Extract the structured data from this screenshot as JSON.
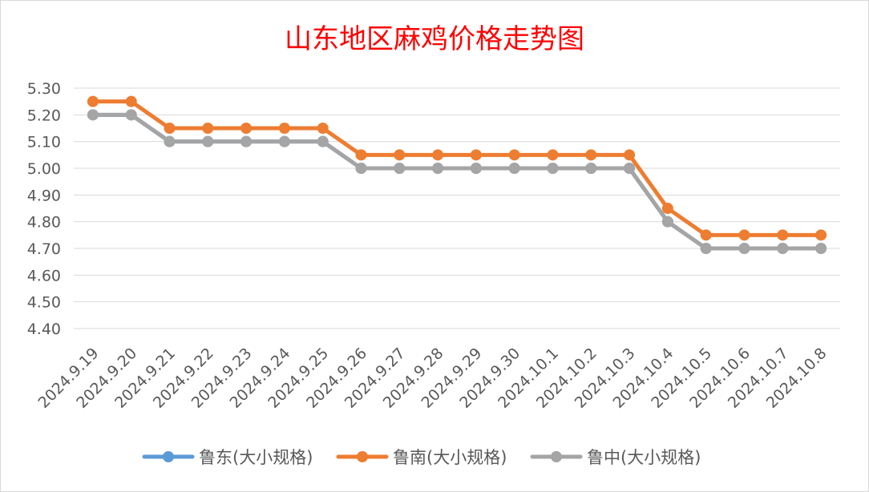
{
  "chart_data": {
    "type": "line",
    "title": "山东地区麻鸡价格走势图",
    "xlabel": "",
    "ylabel": "",
    "ylim": [
      4.4,
      5.3
    ],
    "yticks": [
      "5.30",
      "5.20",
      "5.10",
      "5.00",
      "4.90",
      "4.80",
      "4.70",
      "4.60",
      "4.50",
      "4.40"
    ],
    "grid": true,
    "legend_position": "bottom",
    "categories": [
      "2024.9.19",
      "2024.9.20",
      "2024.9.21",
      "2024.9.22",
      "2024.9.23",
      "2024.9.24",
      "2024.9.25",
      "2024.9.26",
      "2024.9.27",
      "2024.9.28",
      "2024.9.29",
      "2024.9.30",
      "2024.10.1",
      "2024.10.2",
      "2024.10.3",
      "2024.10.4",
      "2024.10.5",
      "2024.10.6",
      "2024.10.7",
      "2024.10.8"
    ],
    "series": [
      {
        "name": "鲁东(大小规格)",
        "color": "#5b9bd5",
        "values": [
          5.2,
          5.2,
          5.1,
          5.1,
          5.1,
          5.1,
          5.1,
          5.0,
          5.0,
          5.0,
          5.0,
          5.0,
          5.0,
          5.0,
          5.0,
          4.8,
          4.7,
          4.7,
          4.7,
          4.7
        ]
      },
      {
        "name": "鲁南(大小规格)",
        "color": "#ed7d31",
        "values": [
          5.25,
          5.25,
          5.15,
          5.15,
          5.15,
          5.15,
          5.15,
          5.05,
          5.05,
          5.05,
          5.05,
          5.05,
          5.05,
          5.05,
          5.05,
          4.85,
          4.75,
          4.75,
          4.75,
          4.75
        ]
      },
      {
        "name": "鲁中(大小规格)",
        "color": "#a5a5a5",
        "values": [
          5.2,
          5.2,
          5.1,
          5.1,
          5.1,
          5.1,
          5.1,
          5.0,
          5.0,
          5.0,
          5.0,
          5.0,
          5.0,
          5.0,
          5.0,
          4.8,
          4.7,
          4.7,
          4.7,
          4.7
        ]
      }
    ]
  }
}
